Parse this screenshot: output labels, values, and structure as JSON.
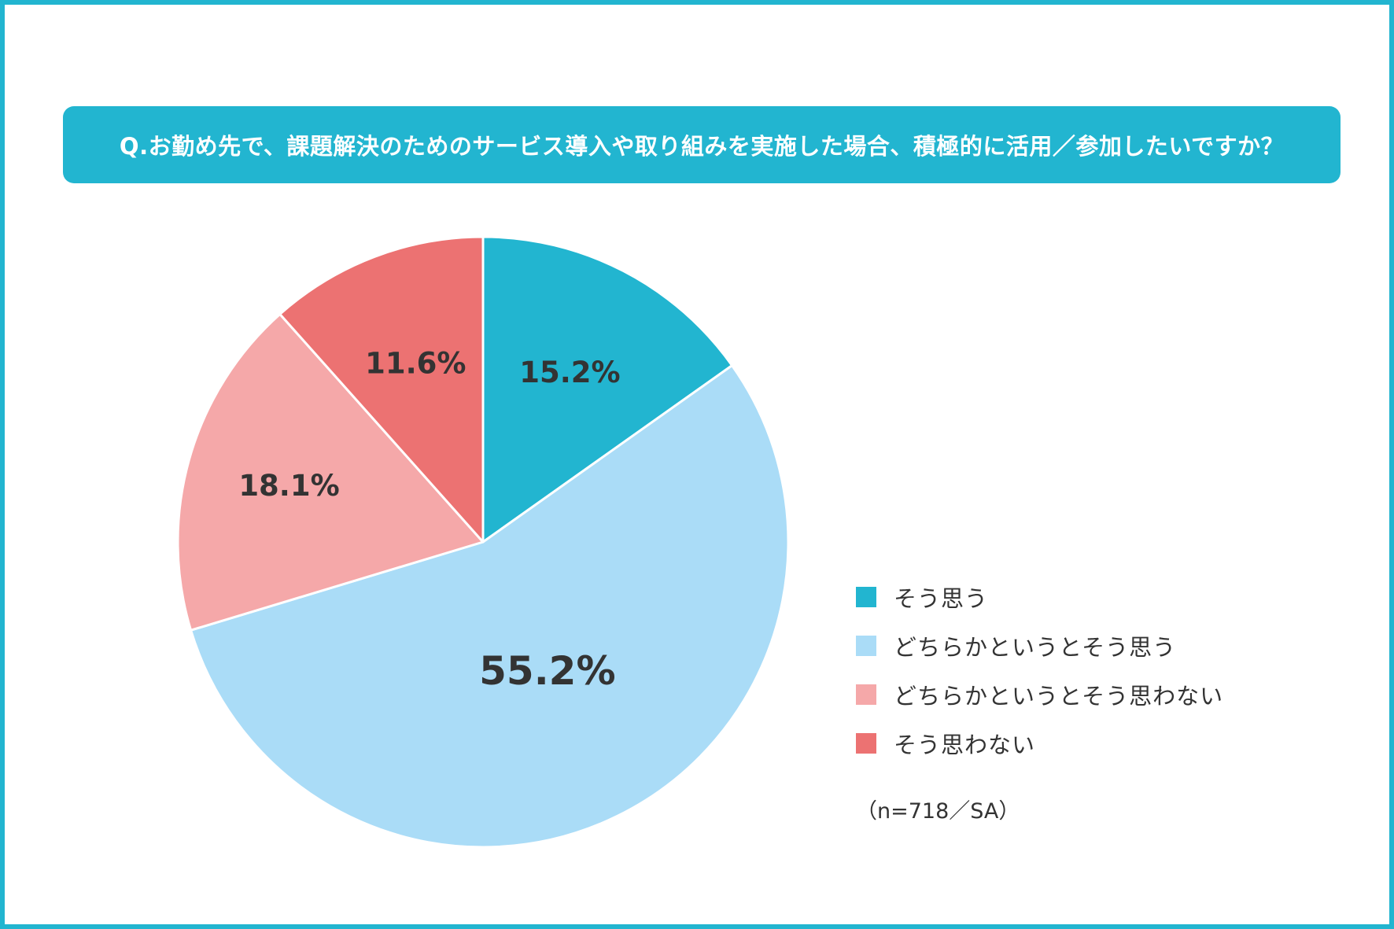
{
  "title": "Q.お勤め先で、課題解決のためのサービス導入や取り組みを実施した場合、積極的に活用／参加したいですか？",
  "note": "（n=718／SA）",
  "chart_data": {
    "type": "pie",
    "title": "Q.お勤め先で、課題解決のためのサービス導入や取り組みを実施した場合、積極的に活用／参加したいですか？",
    "categories": [
      "そう思う",
      "どちらかというとそう思う",
      "どちらかというとそう思わない",
      "そう思わない"
    ],
    "values": [
      15.2,
      55.2,
      18.1,
      11.6
    ],
    "value_labels": [
      "15.2%",
      "55.2%",
      "18.1%",
      "11.6%"
    ],
    "colors": [
      "#22b5d0",
      "#aadcf7",
      "#f5a8a9",
      "#ec7272"
    ],
    "start": "12 o'clock",
    "direction": "clockwise",
    "legend_position": "right"
  }
}
